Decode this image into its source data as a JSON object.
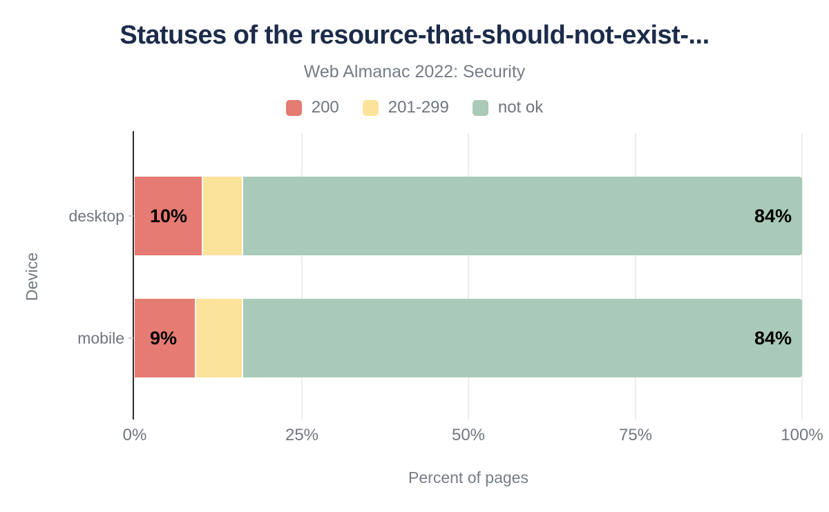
{
  "chart_data": {
    "type": "bar",
    "orientation": "horizontal",
    "stacked": true,
    "title": "Statuses of the resource-that-should-not-exist-...",
    "subtitle": "Web Almanac 2022: Security",
    "xlabel": "Percent of pages",
    "ylabel": "Device",
    "xlim": [
      0,
      100
    ],
    "grid": true,
    "legend_position": "top",
    "xticks": [
      {
        "value": 0,
        "label": "0%"
      },
      {
        "value": 25,
        "label": "25%"
      },
      {
        "value": 50,
        "label": "50%"
      },
      {
        "value": 75,
        "label": "75%"
      },
      {
        "value": 100,
        "label": "100%"
      }
    ],
    "categories": [
      "desktop",
      "mobile"
    ],
    "series": [
      {
        "name": "200",
        "color": "#e57b72",
        "values": [
          10,
          9
        ],
        "labels": [
          "10%",
          "9%"
        ]
      },
      {
        "name": "201-299",
        "color": "#fce39b",
        "values": [
          6,
          7
        ],
        "labels": [
          null,
          null
        ]
      },
      {
        "name": "not ok",
        "color": "#a9cab8",
        "values": [
          84,
          84
        ],
        "labels": [
          "84%",
          "84%"
        ]
      }
    ]
  },
  "colors": {
    "title": "#1c2b4a",
    "subtitle": "#767c86",
    "axis_text": "#70767f",
    "axis_line": "#2b2b2b",
    "gridline": "#ededed",
    "data_label": "#000000",
    "background": "#ffffff"
  }
}
